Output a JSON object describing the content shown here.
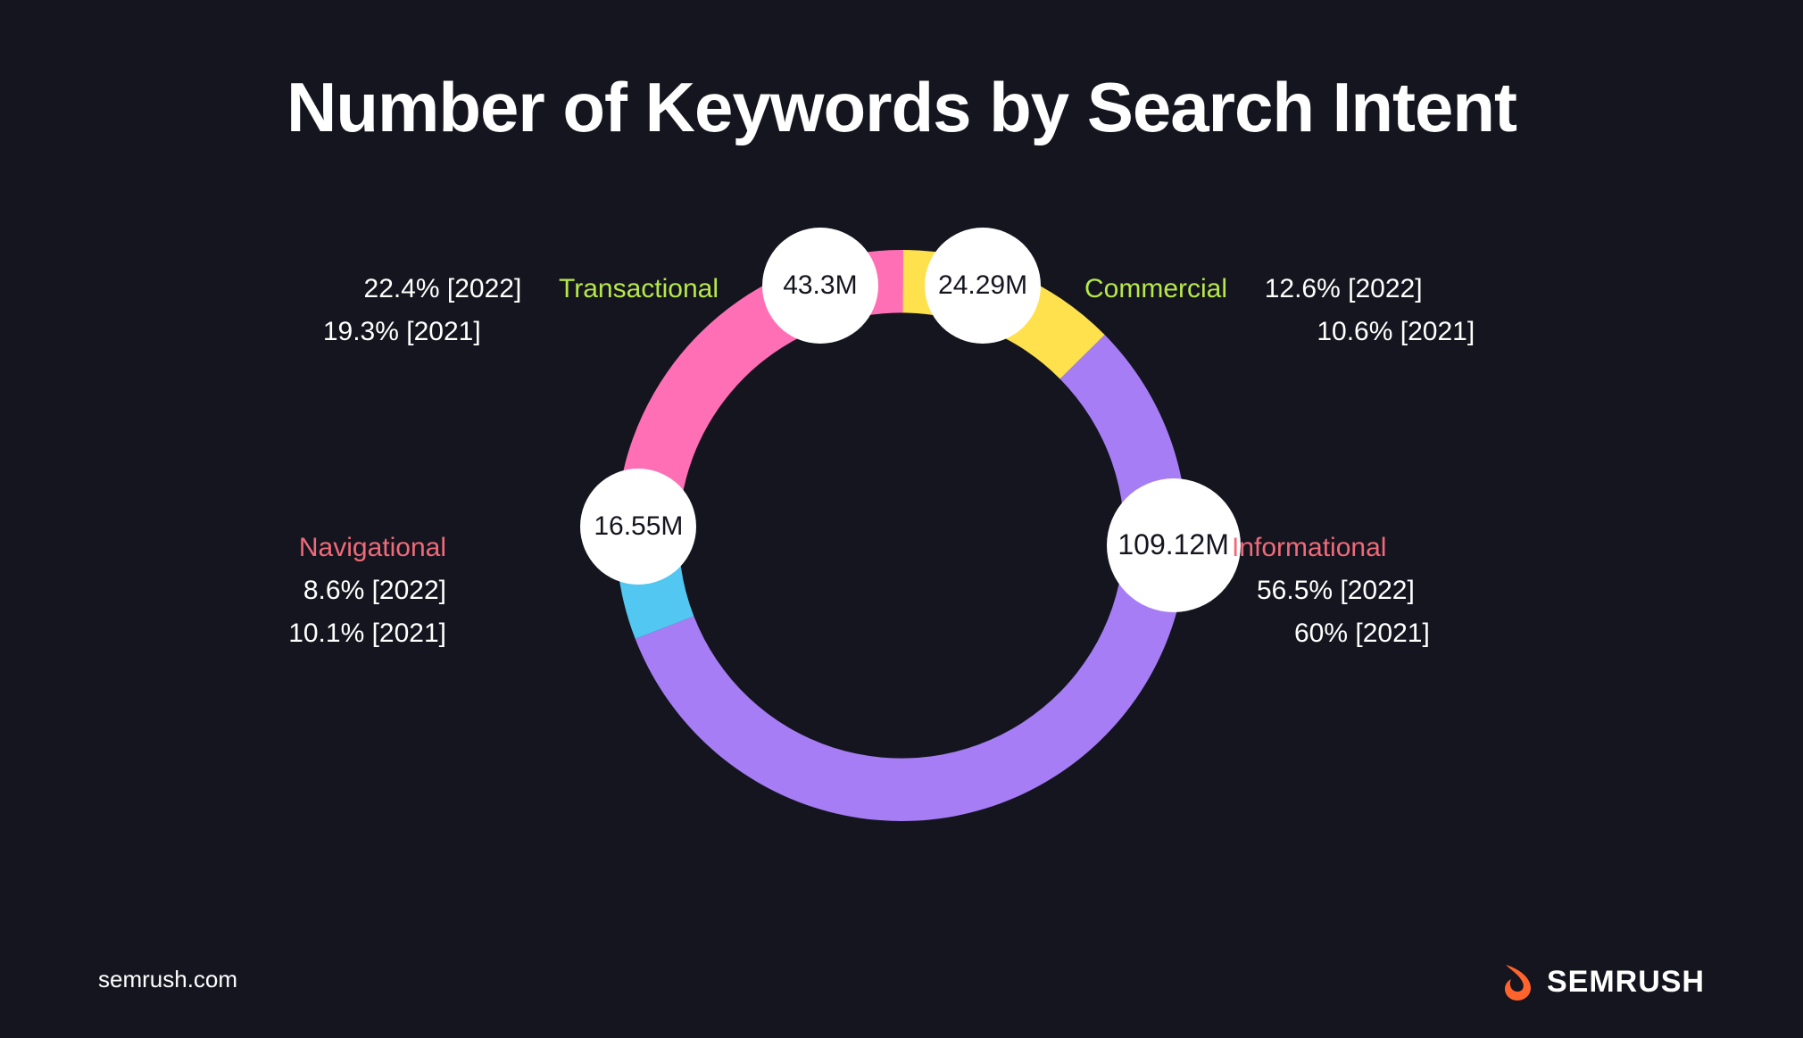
{
  "title": "Number of Keywords by Search Intent",
  "chart": {
    "type": "donut",
    "background_color": "#14151e",
    "inner_radius_ratio": 0.78,
    "outer_radius": 320,
    "segments": [
      {
        "key": "commercial",
        "label": "Commercial",
        "value_label": "24.29M",
        "pct_2022": "12.6% [2022]",
        "pct_2021": "10.6% [2021]",
        "percent": 12.6,
        "color": "#ffe14d",
        "label_color": "#b6e84a"
      },
      {
        "key": "informational",
        "label": "Informational",
        "value_label": "109.12M",
        "pct_2022": "56.5% [2022]",
        "pct_2021": "60% [2021]",
        "percent": 56.5,
        "color": "#a67df5",
        "label_color": "#f06a7a"
      },
      {
        "key": "navigational",
        "label": "Navigational",
        "value_label": "16.55M",
        "pct_2022": "8.6% [2022]",
        "pct_2021": "10.1% [2021]",
        "percent": 8.6,
        "color": "#52c7f2",
        "label_color": "#f06a7a"
      },
      {
        "key": "transactional",
        "label": "Transactional",
        "value_label": "43.3M",
        "pct_2022": "22.4% [2022]",
        "pct_2021": "19.3% [2021]",
        "percent": 22.4,
        "color": "#ff6fb5",
        "label_color": "#b6e84a"
      }
    ],
    "bubble_fill": "#ffffff",
    "bubble_text_color": "#14151e",
    "title_color": "#ffffff",
    "title_fontsize": 78,
    "label_fontsize": 30,
    "value_fontsize": 30
  },
  "footer": {
    "site": "semrush.com",
    "brand": "SEMRUSH",
    "brand_accent": "#ff642d"
  }
}
